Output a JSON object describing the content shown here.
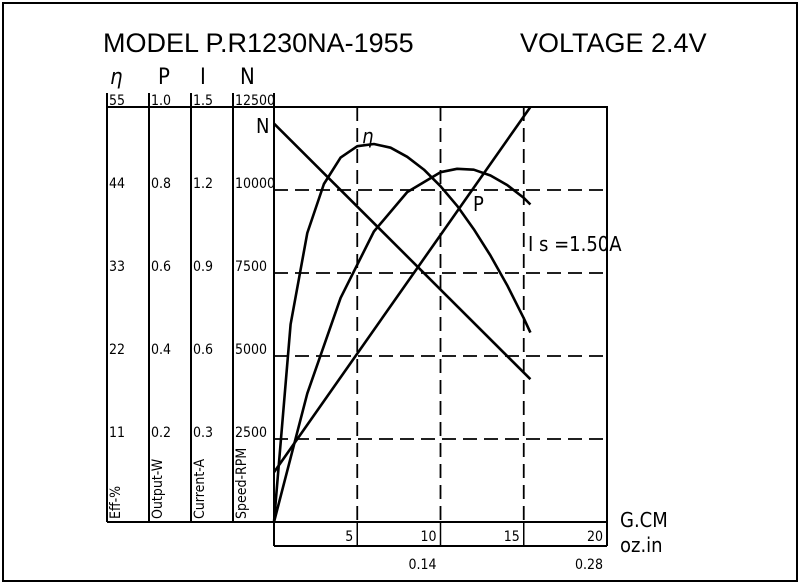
{
  "header": {
    "model": "MODEL P.R1230NA-1955",
    "voltage": "VOLTAGE 2.4V"
  },
  "chart_data": {
    "type": "line",
    "x_unit_primary": "G.CM",
    "x_unit_secondary": "oz.in",
    "x_ticks_primary": [
      5,
      10,
      15,
      20
    ],
    "x_ticks_secondary": [
      "0.14",
      "0.28"
    ],
    "xlim": [
      0,
      20
    ],
    "grid": true,
    "axes": [
      {
        "symbol": "η",
        "label": "Eff-%",
        "ticks": [
          "11",
          "22",
          "33",
          "44",
          "55"
        ],
        "max": 55
      },
      {
        "symbol": "P",
        "label": "Output-W",
        "ticks": [
          "0.2",
          "0.4",
          "0.6",
          "0.8",
          "1.0"
        ],
        "max": 1.0
      },
      {
        "symbol": "I",
        "label": "Current-A",
        "ticks": [
          "0.3",
          "0.6",
          "0.9",
          "1.2",
          "1.5"
        ],
        "max": 1.5
      },
      {
        "symbol": "N",
        "label": "Speed-RPM",
        "ticks": [
          "2500",
          "5000",
          "7500",
          "10000",
          "12500"
        ],
        "max": 12500
      }
    ],
    "series": [
      {
        "name": "N",
        "axis": 3,
        "x": [
          0,
          15.4
        ],
        "y": [
          12000,
          4300
        ]
      },
      {
        "name": "η",
        "axis": 0,
        "x": [
          0,
          1,
          2,
          3,
          4,
          5,
          6,
          7,
          8,
          9,
          10,
          11,
          12,
          13,
          14,
          15,
          15.4
        ],
        "y": [
          0,
          26.2,
          38.3,
          44.8,
          48.3,
          49.8,
          50.1,
          49.6,
          48.4,
          46.7,
          44.5,
          41.9,
          38.8,
          35.3,
          31.4,
          27.0,
          25.1
        ]
      },
      {
        "name": "P",
        "axis": 1,
        "x": [
          0,
          2,
          4,
          6,
          8,
          10,
          11,
          12,
          13,
          14,
          15,
          15.4
        ],
        "y": [
          0,
          0.31,
          0.54,
          0.7,
          0.795,
          0.843,
          0.851,
          0.849,
          0.835,
          0.812,
          0.781,
          0.765
        ]
      },
      {
        "name": "I",
        "axis": 2,
        "x": [
          0,
          15.4
        ],
        "y": [
          0.18,
          1.5
        ]
      }
    ],
    "annotations": {
      "n_label": "N",
      "eta_label": "η",
      "p_label": "P",
      "stall_current": "I s =1.50A"
    }
  }
}
